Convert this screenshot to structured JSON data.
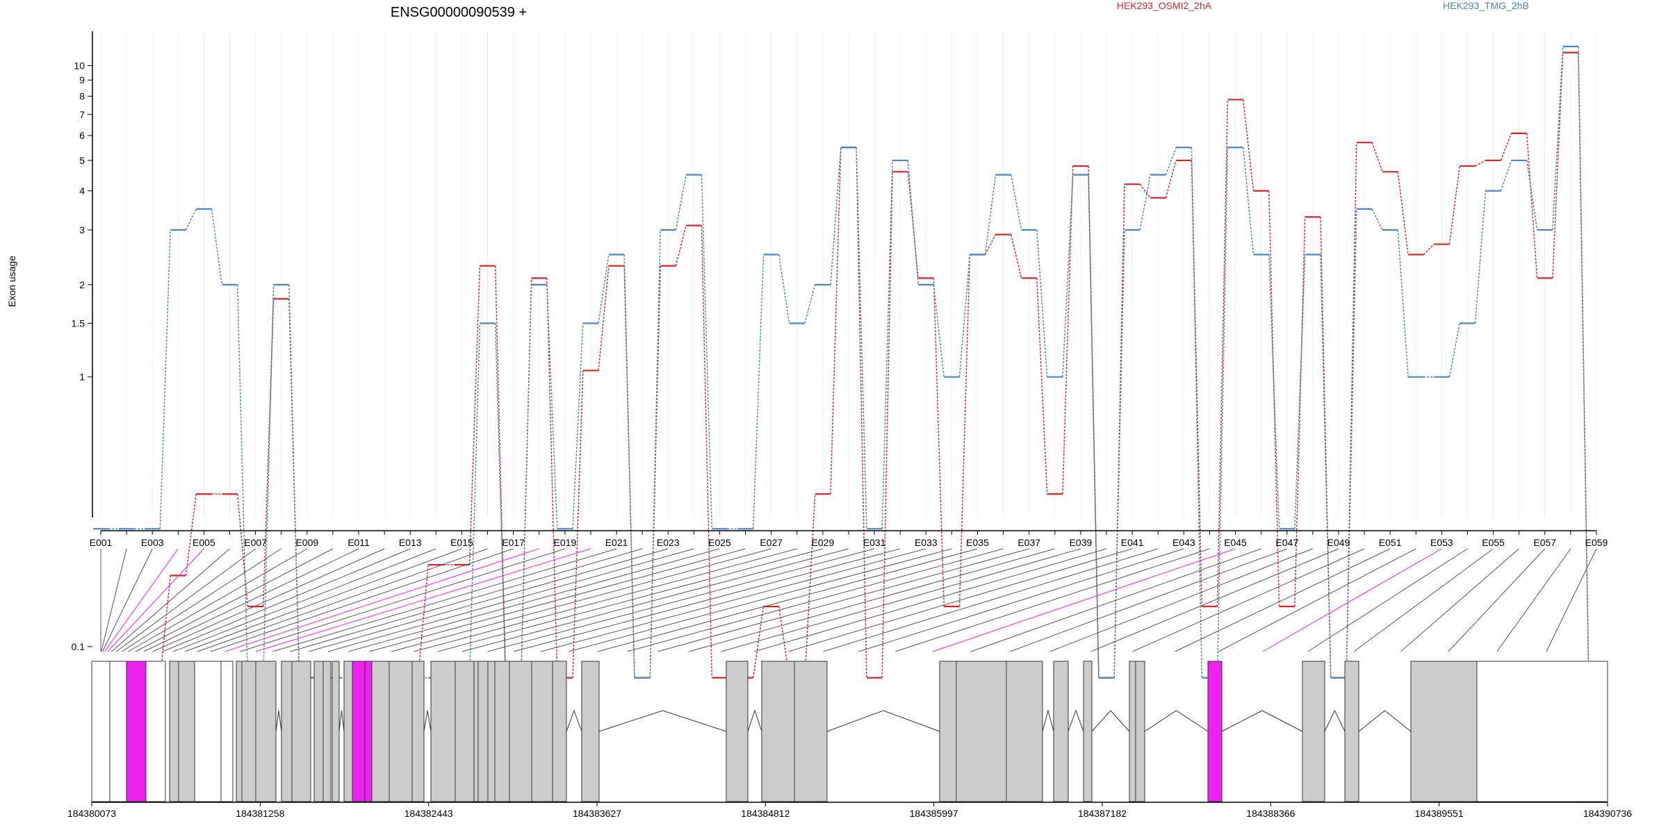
{
  "chart_data": {
    "type": "line",
    "title": "ENSG00000090539 +",
    "ylabel": "Exon usage",
    "yscale": "log",
    "yticks": [
      0.1,
      1,
      1.5,
      2,
      3,
      4,
      5,
      6,
      7,
      8,
      9,
      10
    ],
    "ytick_labels": [
      "0.1",
      "1",
      "1.5",
      "2",
      "3",
      "4",
      "5",
      "6",
      "7",
      "8",
      "9",
      "10"
    ],
    "exons": [
      "E001",
      "E002",
      "E003",
      "E004",
      "E005",
      "E006",
      "E007",
      "E008",
      "E009",
      "E010",
      "E011",
      "E012",
      "E013",
      "E014",
      "E015",
      "E016",
      "E017",
      "E018",
      "E019",
      "E020",
      "E021",
      "E022",
      "E023",
      "E024",
      "E025",
      "E026",
      "E027",
      "E028",
      "E029",
      "E030",
      "E031",
      "E032",
      "E033",
      "E034",
      "E035",
      "E036",
      "E037",
      "E038",
      "E039",
      "E040",
      "E041",
      "E042",
      "E043",
      "E044",
      "E045",
      "E046",
      "E047",
      "E048",
      "E049",
      "E050",
      "E051",
      "E052",
      "E053",
      "E054",
      "E055",
      "E056",
      "E057",
      "E058",
      "E059"
    ],
    "xtick_labels": [
      "E001",
      "E003",
      "E005",
      "E007",
      "E009",
      "E011",
      "E013",
      "E015",
      "E017",
      "E019",
      "E021",
      "E023",
      "E025",
      "E027",
      "E029",
      "E031",
      "E033",
      "E035",
      "E037",
      "E039",
      "E041",
      "E043",
      "E045",
      "E047",
      "E049",
      "E051",
      "E053",
      "E055",
      "E057",
      "E059"
    ],
    "legend_placement": "top",
    "series": [
      {
        "name": "HEK293_OSMI2_2hA",
        "color": "#d62728",
        "values": [
          0.07,
          0.07,
          0.07,
          0.2,
          0.4,
          0.4,
          0.15,
          1.8,
          0.07,
          0.07,
          0.07,
          0.07,
          0.07,
          0.22,
          0.22,
          2.3,
          0.07,
          2.1,
          0.07,
          1.05,
          2.3,
          0.07,
          2.3,
          3.1,
          0.07,
          0.07,
          0.15,
          0.07,
          0.4,
          5.5,
          0.07,
          4.6,
          2.1,
          0.15,
          2.5,
          2.9,
          2.1,
          0.4,
          4.8,
          0.07,
          4.2,
          3.8,
          5.0,
          0.15,
          7.8,
          4.0,
          0.15,
          3.3,
          0.07,
          5.7,
          4.6,
          2.5,
          2.7,
          4.8,
          5.0,
          6.1,
          2.1,
          11.0,
          0.07
        ]
      },
      {
        "name": "HEK293_TMG_2hB",
        "color": "#4a86c2",
        "values": [
          0.3,
          0.3,
          0.3,
          3.0,
          3.5,
          2.0,
          0.07,
          2.0,
          0.07,
          0.07,
          0.07,
          0.07,
          0.07,
          0.07,
          0.07,
          1.5,
          0.07,
          2.0,
          0.3,
          1.5,
          2.5,
          0.07,
          3.0,
          4.5,
          0.3,
          0.3,
          2.5,
          1.5,
          2.0,
          5.5,
          0.3,
          5.0,
          2.0,
          1.0,
          2.5,
          4.5,
          3.0,
          1.0,
          4.5,
          0.07,
          3.0,
          4.5,
          5.5,
          0.07,
          5.5,
          2.5,
          0.3,
          2.5,
          0.07,
          3.5,
          3.0,
          1.0,
          1.0,
          1.5,
          4.0,
          5.0,
          3.0,
          11.5,
          0.07
        ]
      }
    ]
  },
  "gene_model": {
    "coordinate_labels": [
      "184380073",
      "184381258",
      "184382443",
      "184383627",
      "184384812",
      "184385997",
      "184387182",
      "184388366",
      "184389551",
      "184390736"
    ],
    "highlight_color": "#ee22ee",
    "box_fill": "#cccccc",
    "highlighted_exons": [
      "E004",
      "E005",
      "E018",
      "E020",
      "E045",
      "E053"
    ]
  }
}
